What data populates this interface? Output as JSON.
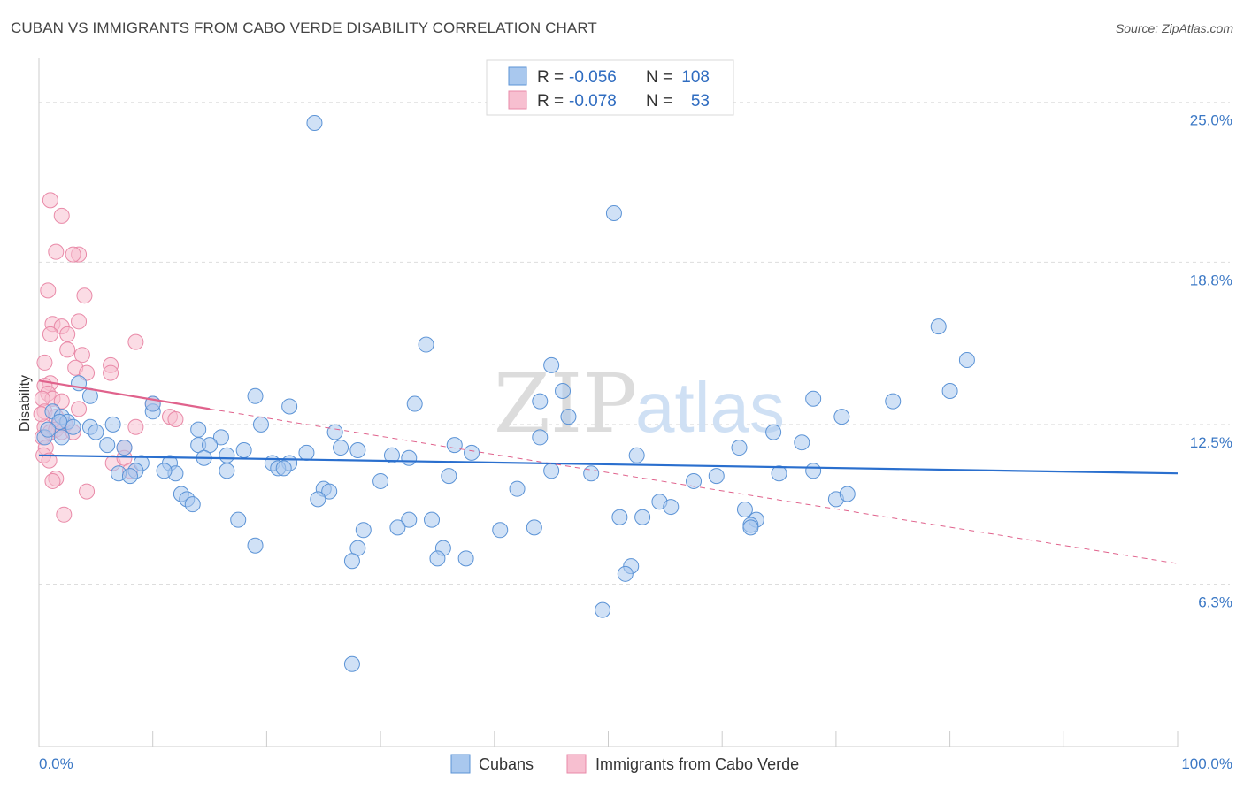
{
  "title": "CUBAN VS IMMIGRANTS FROM CABO VERDE DISABILITY CORRELATION CHART",
  "source": "Source: ZipAtlas.com",
  "watermark": {
    "zip": "ZIP",
    "atlas": "atlas"
  },
  "colors": {
    "blue_fill": "#a9c8ee",
    "blue_stroke": "#5b93d6",
    "blue_line": "#2a6fce",
    "pink_fill": "#f7bfd0",
    "pink_stroke": "#e98aa8",
    "pink_line": "#e0628c",
    "tick_text": "#3b78c5",
    "grid": "#dddddd"
  },
  "legend": {
    "rows": [
      {
        "r_label": "R =",
        "r_value": "-0.056",
        "n_label": "N =",
        "n_value": "108"
      },
      {
        "r_label": "R =",
        "r_value": "-0.078",
        "n_label": "N =",
        "n_value": "53"
      }
    ]
  },
  "bottom_legend": {
    "series1": "Cubans",
    "series2": "Immigrants from Cabo Verde"
  },
  "chart_data": {
    "type": "scatter",
    "xlabel": "",
    "ylabel": "Disability",
    "xlim": [
      0,
      100
    ],
    "ylim": [
      0,
      26.5
    ],
    "x_tick_labels": [
      "0.0%",
      "100.0%"
    ],
    "y_ticks": [
      6.3,
      12.5,
      18.8,
      25.0
    ],
    "y_tick_labels": [
      "6.3%",
      "12.5%",
      "18.8%",
      "25.0%"
    ],
    "grid": true,
    "series": [
      {
        "name": "Cubans",
        "trend": {
          "x": [
            0,
            100
          ],
          "y": [
            11.3,
            10.6
          ],
          "style": "solid"
        },
        "points": [
          [
            24.2,
            24.2
          ],
          [
            50.5,
            20.7
          ],
          [
            79.0,
            16.3
          ],
          [
            81.5,
            15.0
          ],
          [
            34.0,
            15.6
          ],
          [
            45.0,
            14.8
          ],
          [
            46.0,
            13.8
          ],
          [
            44.0,
            13.4
          ],
          [
            80.0,
            13.8
          ],
          [
            68.0,
            13.5
          ],
          [
            75.0,
            13.4
          ],
          [
            22.0,
            13.2
          ],
          [
            33.0,
            13.3
          ],
          [
            19.0,
            13.6
          ],
          [
            3.5,
            14.1
          ],
          [
            1.2,
            13.0
          ],
          [
            2.0,
            12.8
          ],
          [
            4.5,
            13.6
          ],
          [
            10.0,
            13.0
          ],
          [
            10.0,
            13.3
          ],
          [
            2.5,
            12.6
          ],
          [
            4.5,
            12.4
          ],
          [
            6.5,
            12.5
          ],
          [
            14.0,
            12.3
          ],
          [
            19.5,
            12.5
          ],
          [
            26.0,
            12.2
          ],
          [
            46.5,
            12.8
          ],
          [
            70.5,
            12.8
          ],
          [
            64.5,
            12.2
          ],
          [
            44.0,
            12.0
          ],
          [
            16.0,
            12.0
          ],
          [
            14.0,
            11.7
          ],
          [
            15.0,
            11.7
          ],
          [
            6.0,
            11.7
          ],
          [
            7.5,
            11.6
          ],
          [
            2.0,
            12.0
          ],
          [
            0.5,
            12.0
          ],
          [
            36.5,
            11.7
          ],
          [
            26.5,
            11.6
          ],
          [
            28.0,
            11.5
          ],
          [
            18.0,
            11.5
          ],
          [
            23.5,
            11.4
          ],
          [
            61.5,
            11.6
          ],
          [
            67.0,
            11.8
          ],
          [
            16.5,
            11.3
          ],
          [
            14.5,
            11.2
          ],
          [
            31.0,
            11.3
          ],
          [
            32.5,
            11.2
          ],
          [
            20.5,
            11.0
          ],
          [
            22.0,
            11.0
          ],
          [
            21.0,
            10.8
          ],
          [
            21.5,
            10.8
          ],
          [
            9.0,
            11.0
          ],
          [
            11.5,
            11.0
          ],
          [
            16.5,
            10.7
          ],
          [
            12.0,
            10.6
          ],
          [
            11.0,
            10.7
          ],
          [
            8.5,
            10.7
          ],
          [
            7.0,
            10.6
          ],
          [
            8.0,
            10.5
          ],
          [
            36.0,
            10.5
          ],
          [
            45.0,
            10.7
          ],
          [
            48.5,
            10.6
          ],
          [
            65.0,
            10.6
          ],
          [
            68.0,
            10.7
          ],
          [
            59.5,
            10.5
          ],
          [
            57.5,
            10.3
          ],
          [
            30.0,
            10.3
          ],
          [
            42.0,
            10.0
          ],
          [
            12.5,
            9.8
          ],
          [
            13.0,
            9.6
          ],
          [
            25.0,
            10.0
          ],
          [
            25.5,
            9.9
          ],
          [
            24.5,
            9.6
          ],
          [
            54.5,
            9.5
          ],
          [
            55.5,
            9.3
          ],
          [
            70.0,
            9.6
          ],
          [
            71.0,
            9.8
          ],
          [
            13.5,
            9.4
          ],
          [
            62.0,
            9.2
          ],
          [
            53.0,
            8.9
          ],
          [
            51.0,
            8.9
          ],
          [
            17.5,
            8.8
          ],
          [
            32.5,
            8.8
          ],
          [
            34.5,
            8.8
          ],
          [
            63.0,
            8.8
          ],
          [
            62.5,
            8.6
          ],
          [
            62.5,
            8.5
          ],
          [
            31.5,
            8.5
          ],
          [
            28.5,
            8.4
          ],
          [
            40.5,
            8.4
          ],
          [
            43.5,
            8.5
          ],
          [
            19.0,
            7.8
          ],
          [
            28.0,
            7.7
          ],
          [
            35.5,
            7.7
          ],
          [
            27.5,
            7.2
          ],
          [
            35.0,
            7.3
          ],
          [
            37.5,
            7.3
          ],
          [
            52.0,
            7.0
          ],
          [
            51.5,
            6.7
          ],
          [
            49.5,
            5.3
          ],
          [
            27.5,
            3.2
          ],
          [
            3.0,
            12.4
          ],
          [
            1.8,
            12.6
          ],
          [
            0.8,
            12.3
          ],
          [
            5.0,
            12.2
          ],
          [
            52.5,
            11.3
          ],
          [
            38.0,
            11.4
          ]
        ]
      },
      {
        "name": "Immigrants from Cabo Verde",
        "trend": {
          "solid_x": [
            0,
            15
          ],
          "solid_y": [
            14.2,
            13.1
          ],
          "dashed_x": [
            15,
            100
          ],
          "dashed_y": [
            13.1,
            7.1
          ],
          "style": "solid-then-dashed"
        },
        "points": [
          [
            1.0,
            21.2
          ],
          [
            2.0,
            20.6
          ],
          [
            1.5,
            19.2
          ],
          [
            3.5,
            19.1
          ],
          [
            3.0,
            19.1
          ],
          [
            0.8,
            17.7
          ],
          [
            4.0,
            17.5
          ],
          [
            1.2,
            16.4
          ],
          [
            3.5,
            16.5
          ],
          [
            2.0,
            16.3
          ],
          [
            1.0,
            16.0
          ],
          [
            2.5,
            16.0
          ],
          [
            8.5,
            15.7
          ],
          [
            2.5,
            15.4
          ],
          [
            3.8,
            15.2
          ],
          [
            0.5,
            14.9
          ],
          [
            3.2,
            14.7
          ],
          [
            6.3,
            14.8
          ],
          [
            6.3,
            14.5
          ],
          [
            4.2,
            14.5
          ],
          [
            1.0,
            14.1
          ],
          [
            0.5,
            14.0
          ],
          [
            0.8,
            13.7
          ],
          [
            1.2,
            13.5
          ],
          [
            0.3,
            13.5
          ],
          [
            2.0,
            13.4
          ],
          [
            3.5,
            13.1
          ],
          [
            10.0,
            13.3
          ],
          [
            0.5,
            13.0
          ],
          [
            1.5,
            12.8
          ],
          [
            1.8,
            12.5
          ],
          [
            2.3,
            12.5
          ],
          [
            11.5,
            12.8
          ],
          [
            12.0,
            12.7
          ],
          [
            0.5,
            12.4
          ],
          [
            1.0,
            12.2
          ],
          [
            1.5,
            12.3
          ],
          [
            2.0,
            12.2
          ],
          [
            8.5,
            12.4
          ],
          [
            0.3,
            12.0
          ],
          [
            0.6,
            11.6
          ],
          [
            7.5,
            11.6
          ],
          [
            0.4,
            11.3
          ],
          [
            0.9,
            11.1
          ],
          [
            6.5,
            11.0
          ],
          [
            7.5,
            11.2
          ],
          [
            8.0,
            10.7
          ],
          [
            1.5,
            10.4
          ],
          [
            1.2,
            10.3
          ],
          [
            4.2,
            9.9
          ],
          [
            2.2,
            9.0
          ],
          [
            0.2,
            12.9
          ],
          [
            3.0,
            12.2
          ]
        ]
      }
    ]
  }
}
